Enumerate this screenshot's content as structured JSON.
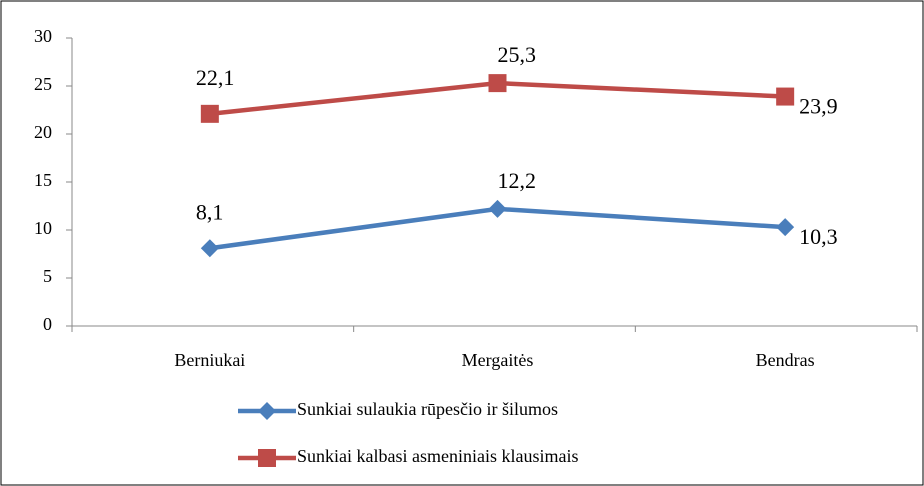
{
  "chart_data": {
    "type": "line",
    "categories": [
      "Berniukai",
      "Mergaitės",
      "Bendras"
    ],
    "series": [
      {
        "name": "Sunkiai sulaukia rūpesčio ir šilumos",
        "color": "#4a7ebb",
        "marker": "diamond",
        "values": [
          8.1,
          12.2,
          10.3
        ],
        "value_labels": [
          "8,1",
          "12,2",
          "10,3"
        ]
      },
      {
        "name": "Sunkiai kalbasi asmeniniais klausimais",
        "color": "#be4b48",
        "marker": "square",
        "values": [
          22.1,
          25.3,
          23.9
        ],
        "value_labels": [
          "22,1",
          "25,3",
          "23,9"
        ]
      }
    ],
    "ylim": [
      0,
      30
    ],
    "yticks": [
      0,
      5,
      10,
      15,
      20,
      25,
      30
    ],
    "grid": false,
    "legend": "bottom"
  }
}
